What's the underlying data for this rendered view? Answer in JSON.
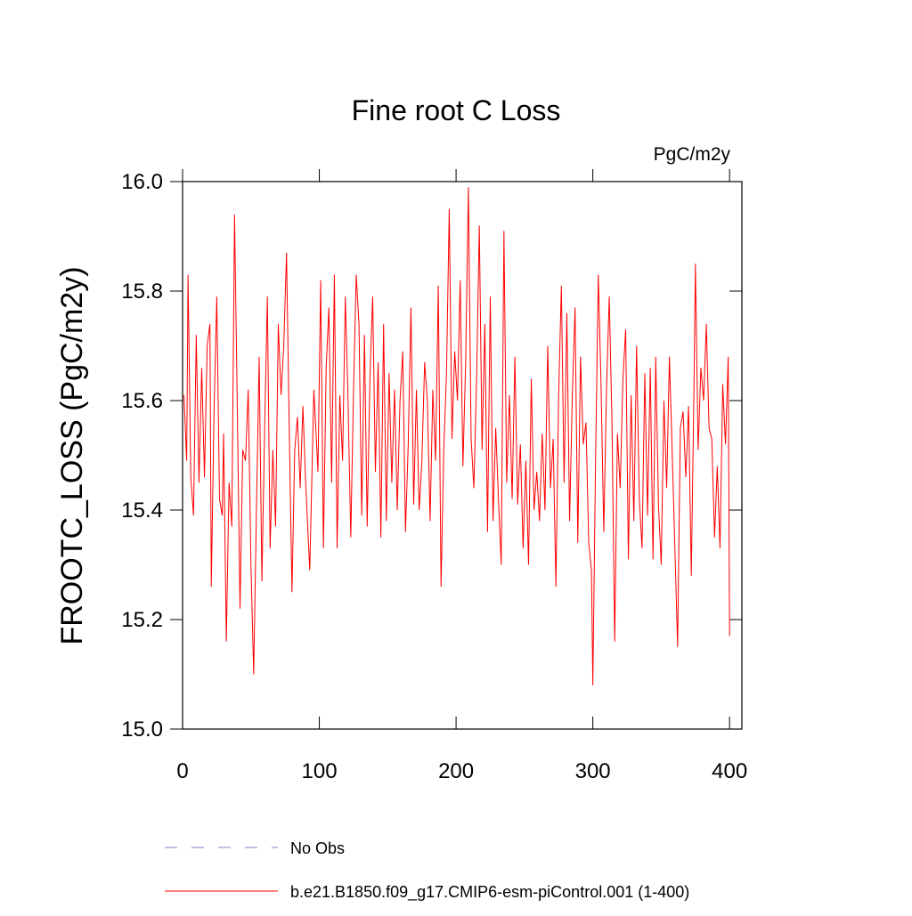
{
  "chart_data": {
    "type": "line",
    "title": "Fine root C Loss",
    "units": "PgC/m2y",
    "y_label": "FROOTC_LOSS  (PgC/m2y)",
    "xlim": [
      0,
      409
    ],
    "ylim": [
      15.0,
      16.0
    ],
    "xticks": [
      0,
      100,
      200,
      300,
      400
    ],
    "yticks": [
      {
        "value": 15.0,
        "label": "15.0"
      },
      15.2,
      15.4,
      15.6,
      15.8,
      {
        "value": 16.0,
        "label": "16.0"
      }
    ],
    "reference": {
      "name": "No Obs",
      "color": "#7f7fcc",
      "dashed": true
    },
    "series": [
      {
        "name": "b.e21.B1850.f09_g17.CMIP6-esm-piControl.001 (1-400)",
        "color": "#ff0000",
        "x": [
          1,
          3,
          4,
          6,
          8,
          10,
          12,
          14,
          16,
          18,
          20,
          21,
          23,
          25,
          27,
          29,
          30,
          32,
          34,
          36,
          38,
          40,
          42,
          44,
          46,
          48,
          50,
          52,
          54,
          56,
          58,
          60,
          62,
          64,
          66,
          68,
          70,
          72,
          74,
          76,
          78,
          80,
          82,
          84,
          86,
          88,
          90,
          93,
          96,
          99,
          101,
          103,
          105,
          107,
          109,
          111,
          113,
          115,
          117,
          119,
          121,
          123,
          125,
          127,
          129,
          131,
          133,
          135,
          137,
          139,
          141,
          143,
          145,
          147,
          149,
          151,
          153,
          155,
          157,
          159,
          161,
          163,
          165,
          167,
          169,
          171,
          173,
          175,
          177,
          179,
          181,
          183,
          185,
          187,
          189,
          191,
          193,
          195,
          197,
          199,
          201,
          203,
          205,
          207,
          209,
          211,
          213,
          215,
          217,
          219,
          221,
          223,
          225,
          227,
          229,
          231,
          233,
          235,
          237,
          239,
          241,
          243,
          245,
          247,
          249,
          251,
          253,
          255,
          257,
          259,
          261,
          263,
          265,
          267,
          269,
          271,
          273,
          275,
          277,
          279,
          281,
          283,
          285,
          287,
          289,
          291,
          293,
          295,
          297,
          299,
          300,
          302,
          304,
          306,
          308,
          310,
          312,
          314,
          316,
          318,
          320,
          322,
          324,
          326,
          328,
          330,
          332,
          334,
          336,
          338,
          340,
          342,
          344,
          346,
          348,
          350,
          352,
          354,
          356,
          358,
          360,
          362,
          364,
          366,
          368,
          370,
          372,
          374,
          375,
          377,
          379,
          381,
          383,
          385,
          387,
          389,
          391,
          393,
          395,
          397,
          399,
          400
        ],
        "values": [
          15.61,
          15.49,
          15.83,
          15.46,
          15.39,
          15.72,
          15.45,
          15.66,
          15.46,
          15.7,
          15.74,
          15.26,
          15.58,
          15.79,
          15.42,
          15.39,
          15.54,
          15.16,
          15.45,
          15.37,
          15.94,
          15.59,
          15.22,
          15.51,
          15.49,
          15.62,
          15.3,
          15.1,
          15.4,
          15.68,
          15.27,
          15.55,
          15.79,
          15.33,
          15.51,
          15.37,
          15.74,
          15.61,
          15.7,
          15.87,
          15.55,
          15.25,
          15.51,
          15.57,
          15.44,
          15.59,
          15.45,
          15.29,
          15.62,
          15.47,
          15.82,
          15.33,
          15.66,
          15.77,
          15.45,
          15.83,
          15.33,
          15.61,
          15.49,
          15.79,
          15.6,
          15.35,
          15.62,
          15.83,
          15.74,
          15.39,
          15.72,
          15.37,
          15.64,
          15.79,
          15.47,
          15.67,
          15.35,
          15.74,
          15.38,
          15.65,
          15.45,
          15.62,
          15.4,
          15.6,
          15.69,
          15.36,
          15.52,
          15.77,
          15.41,
          15.62,
          15.4,
          15.49,
          15.67,
          15.6,
          15.38,
          15.62,
          15.49,
          15.81,
          15.26,
          15.51,
          15.65,
          15.95,
          15.53,
          15.69,
          15.6,
          15.82,
          15.48,
          15.67,
          15.99,
          15.53,
          15.44,
          15.64,
          15.92,
          15.51,
          15.74,
          15.36,
          15.79,
          15.38,
          15.55,
          15.42,
          15.3,
          15.91,
          15.45,
          15.61,
          15.42,
          15.68,
          15.41,
          15.52,
          15.33,
          15.49,
          15.3,
          15.64,
          15.4,
          15.47,
          15.38,
          15.54,
          15.4,
          15.7,
          15.44,
          15.53,
          15.26,
          15.61,
          15.81,
          15.45,
          15.76,
          15.38,
          15.61,
          15.77,
          15.34,
          15.68,
          15.52,
          15.56,
          15.34,
          15.29,
          15.08,
          15.49,
          15.83,
          15.63,
          15.36,
          15.62,
          15.79,
          15.56,
          15.16,
          15.54,
          15.44,
          15.64,
          15.73,
          15.31,
          15.61,
          15.38,
          15.7,
          15.42,
          15.33,
          15.65,
          15.39,
          15.66,
          15.31,
          15.68,
          15.41,
          15.3,
          15.6,
          15.44,
          15.68,
          15.51,
          15.33,
          15.15,
          15.55,
          15.58,
          15.46,
          15.59,
          15.28,
          15.63,
          15.85,
          15.51,
          15.66,
          15.6,
          15.74,
          15.55,
          15.53,
          15.35,
          15.48,
          15.33,
          15.63,
          15.52,
          15.68,
          15.17
        ]
      }
    ]
  }
}
